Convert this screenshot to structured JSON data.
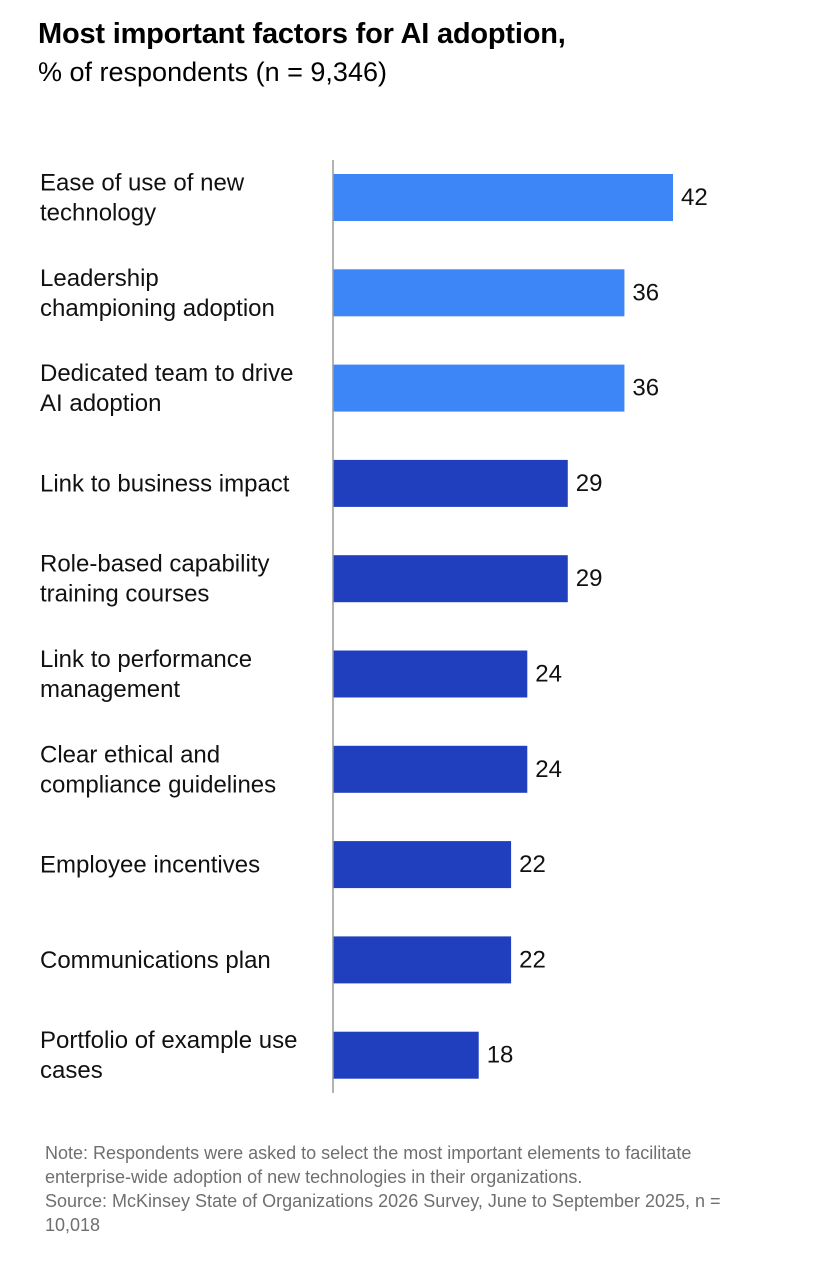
{
  "header": {
    "title": "Most important factors for AI adoption,",
    "subtitle": "% of respondents (n = 9,346)"
  },
  "chart_data": {
    "type": "bar",
    "orientation": "horizontal",
    "categories": [
      [
        "Ease of use of new",
        "technology"
      ],
      [
        "Leadership",
        "championing adoption"
      ],
      [
        "Dedicated team to drive",
        "AI adoption"
      ],
      [
        "Link to business impact"
      ],
      [
        "Role-based capability",
        "training courses"
      ],
      [
        "Link to performance",
        "management"
      ],
      [
        "Clear ethical and",
        "compliance guidelines"
      ],
      [
        "Employee incentives"
      ],
      [
        "Communications plan"
      ],
      [
        "Portfolio of example use",
        "cases"
      ]
    ],
    "values": [
      42,
      36,
      36,
      29,
      29,
      24,
      24,
      22,
      22,
      18
    ],
    "highlight_count": 3,
    "colors": {
      "highlight": "#3d86f7",
      "default": "#1f3fbf",
      "axis": "#9a9a9a"
    },
    "title": "Most important factors for AI adoption,",
    "xlabel": "",
    "ylabel": "",
    "xlim": [
      0,
      50
    ],
    "grid": false,
    "legend": "none"
  },
  "footnote": {
    "note": "Note: Respondents were asked to select the most important elements to facilitate enterprise-wide adoption of new technologies in their organizations.",
    "source": "Source: McKinsey State of Organizations 2026 Survey, June to September 2025, n = 10,018"
  }
}
